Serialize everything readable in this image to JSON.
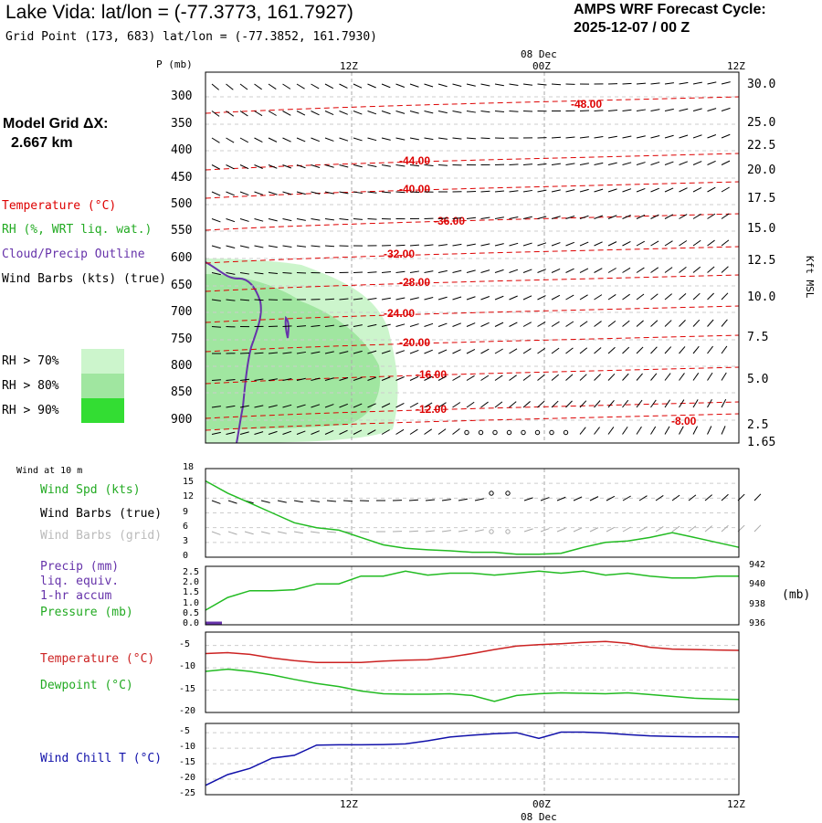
{
  "header": {
    "title": "Lake Vida:  lat/lon = (-77.3773, 161.7927)",
    "subtitle": "Grid Point (173, 683) lat/lon = (-77.3852, 161.7930)",
    "cycle_label": "AMPS WRF Forecast Cycle:",
    "cycle_value": "2025-12-07 / 00  Z",
    "grid_label": "Model Grid ΔX:",
    "grid_value": "2.667 km"
  },
  "legend": {
    "temperature": "Temperature (°C)",
    "rh": "RH (%, WRT liq. wat.)",
    "cloud": "Cloud/Precip Outline",
    "wind": "Wind Barbs (kts) (true)",
    "rh70": "RH > 70%",
    "rh80": "RH > 80%",
    "rh90": "RH > 90%",
    "colors": {
      "rh70": "#ccf5cc",
      "rh80": "#a0e6a0",
      "rh90": "#33dd33",
      "temp": "#dd0000",
      "cloud": "#6633aa"
    }
  },
  "time_axis": {
    "top_labels": [
      "12Z",
      "00Z",
      "12Z"
    ],
    "date_label": "08 Dec",
    "bottom_labels": [
      "12Z",
      "00Z",
      "12Z"
    ]
  },
  "panels": {
    "wind10": {
      "caption": "Wind at 10 m",
      "spd": "Wind Spd (kts)",
      "barbs_true": "Wind Barbs (true)",
      "barbs_grid": "Wind Barbs (grid)"
    },
    "precip": {
      "l1": "Precip (mm)",
      "l2": "liq. equiv.",
      "l3": "1-hr accum",
      "l4": "Pressure (mb)",
      "unit": "(mb)"
    },
    "temp": {
      "t": "Temperature (°C)",
      "td": "Dewpoint (°C)"
    },
    "chill": {
      "t": "Wind Chill T (°C)"
    }
  },
  "chart_data": [
    {
      "type": "line",
      "panel": "cross-section",
      "ylabel": "P (mb)",
      "y2label": "Kft MSL",
      "y_ticks": [
        "300",
        "350",
        "400",
        "450",
        "500",
        "550",
        "600",
        "650",
        "700",
        "750",
        "800",
        "850",
        "900"
      ],
      "y2_ticks": [
        "30.0",
        "25.0",
        "22.5",
        "20.0",
        "17.5",
        "15.0",
        "12.5",
        "10.0",
        "7.5",
        "5.0",
        "2.5",
        "1.65"
      ],
      "temperature_contours": [
        "-48.00",
        "-44.00",
        "-40.00",
        "-36.00",
        "-32.00",
        "-28.00",
        "-24.00",
        "-20.00",
        "-16.00",
        "-12.00",
        "-8.00"
      ]
    },
    {
      "type": "line",
      "panel": "wind10",
      "y_ticks": [
        "18",
        "15",
        "12",
        "9",
        "6",
        "3",
        "0"
      ],
      "ylim": [
        0,
        18
      ],
      "series": [
        {
          "name": "Wind Spd (kts)",
          "values": [
            15.5,
            13,
            11,
            9,
            7,
            6,
            5.5,
            4,
            2.5,
            1.8,
            1.5,
            1.3,
            1,
            1,
            0.6,
            0.6,
            0.8,
            2,
            3,
            3.3,
            4,
            5,
            4,
            3,
            2
          ]
        }
      ]
    },
    {
      "type": "line",
      "panel": "precip-pressure",
      "y_ticks": [
        "2.5",
        "2.0",
        "1.5",
        "1.0",
        "0.5",
        "0.0"
      ],
      "y2_ticks": [
        "942",
        "940",
        "938",
        "936"
      ],
      "ylim": [
        936,
        942
      ],
      "series": [
        {
          "name": "Pressure (mb)",
          "values": [
            937.5,
            938.8,
            939.5,
            939.5,
            939.6,
            940.2,
            940.2,
            941,
            941,
            941.5,
            941.1,
            941.3,
            941.3,
            941.1,
            941.3,
            941.5,
            941.3,
            941.5,
            941.1,
            941.3,
            941,
            940.8,
            940.8,
            941,
            941
          ]
        }
      ]
    },
    {
      "type": "line",
      "panel": "temp-dewpoint",
      "y_ticks": [
        "-5",
        "-10",
        "-15",
        "-20"
      ],
      "ylim": [
        -20,
        -2
      ],
      "series": [
        {
          "name": "Temperature (°C)",
          "values": [
            -6.8,
            -6.6,
            -7,
            -7.8,
            -8.4,
            -8.8,
            -8.8,
            -8.8,
            -8.5,
            -8.3,
            -8.2,
            -7.6,
            -6.8,
            -5.9,
            -5.1,
            -4.8,
            -4.6,
            -4.3,
            -4.1,
            -4.5,
            -5.4,
            -5.8,
            -5.9,
            -6,
            -6.1
          ]
        },
        {
          "name": "Dewpoint (°C)",
          "values": [
            -10.8,
            -10.3,
            -10.8,
            -11.6,
            -12.6,
            -13.5,
            -14.2,
            -15.2,
            -15.8,
            -15.9,
            -15.9,
            -15.8,
            -16.2,
            -17.5,
            -16.2,
            -15.8,
            -15.6,
            -15.7,
            -15.8,
            -15.6,
            -16,
            -16.4,
            -16.8,
            -17,
            -17.1
          ]
        }
      ]
    },
    {
      "type": "line",
      "panel": "windchill",
      "y_ticks": [
        "-5",
        "-10",
        "-15",
        "-20",
        "-25"
      ],
      "ylim": [
        -25,
        -2
      ],
      "series": [
        {
          "name": "Wind Chill T (°C)",
          "values": [
            -22,
            -18.5,
            -16.5,
            -13.2,
            -12.3,
            -9,
            -8.9,
            -8.9,
            -8.8,
            -8.6,
            -7.6,
            -6.4,
            -5.8,
            -5.3,
            -5,
            -6.8,
            -4.8,
            -4.8,
            -5.1,
            -5.6,
            -6,
            -6.2,
            -6.3,
            -6.3,
            -6.4
          ]
        }
      ]
    }
  ]
}
